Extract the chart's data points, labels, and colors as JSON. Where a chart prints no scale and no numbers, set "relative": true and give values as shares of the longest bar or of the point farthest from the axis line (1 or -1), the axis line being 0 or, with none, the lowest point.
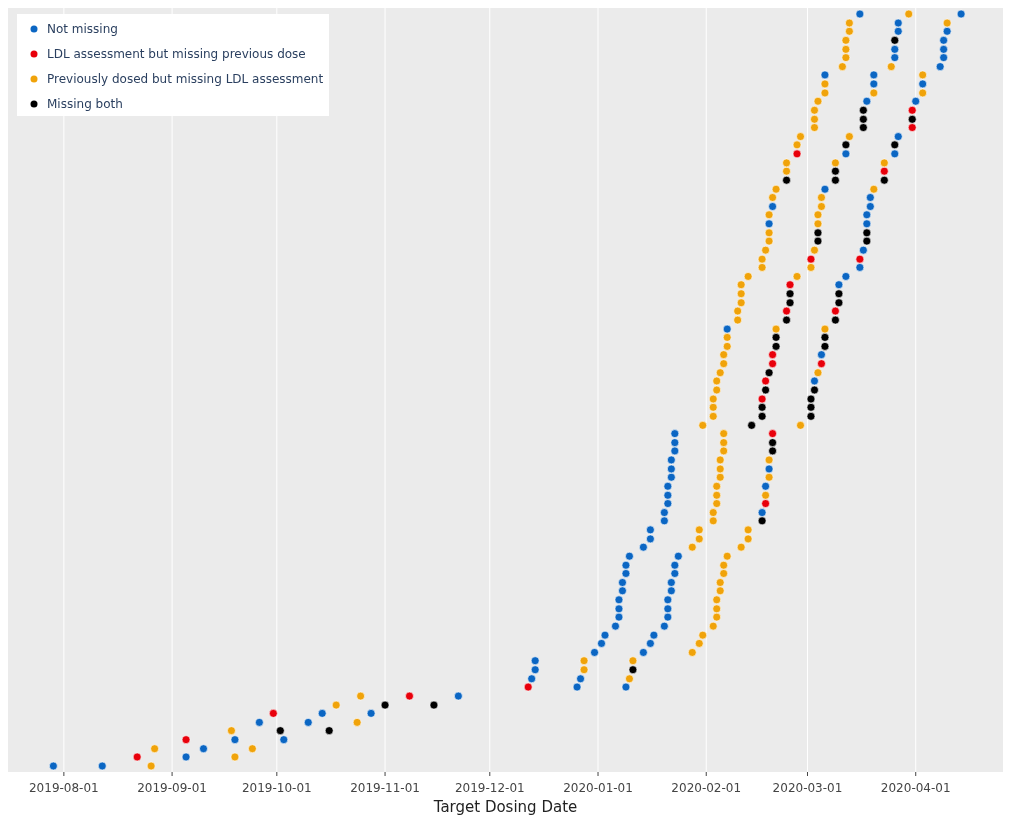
{
  "chart_data": {
    "type": "scatter",
    "xlabel": "Target Dosing Date",
    "relative": true,
    "grid": "x",
    "legend": "top left",
    "marker": "circle",
    "xlim": [
      "2019-07-16",
      "2020-04-26"
    ],
    "xticks": [
      "2019-08-01",
      "2019-09-01",
      "2019-10-01",
      "2019-11-01",
      "2019-12-01",
      "2020-01-01",
      "2020-02-01",
      "2020-03-01",
      "2020-04-01"
    ],
    "series": [
      {
        "name": "Not missing",
        "color": "#0b66c3",
        "x": [
          "2019-07-29",
          "2019-08-12",
          "2019-09-05",
          "2019-09-10",
          "2019-09-19",
          "2019-10-03",
          "2019-09-26",
          "2019-10-10",
          "2019-10-14",
          "2019-10-28",
          "2019-11-22",
          "2019-12-26",
          "2020-01-09",
          "2019-12-13",
          "2019-12-27",
          "2019-12-14",
          "2019-12-14",
          "2019-12-31",
          "2020-01-14",
          "2020-01-02",
          "2020-01-16",
          "2020-01-03",
          "2020-01-17",
          "2020-01-06",
          "2020-01-20",
          "2020-01-07",
          "2020-01-21",
          "2020-01-07",
          "2020-01-21",
          "2020-01-07",
          "2020-01-21",
          "2020-01-08",
          "2020-01-22",
          "2020-01-08",
          "2020-01-22",
          "2020-01-09",
          "2020-01-23",
          "2020-01-09",
          "2020-01-23",
          "2020-01-10",
          "2020-01-24",
          "2020-01-14",
          "2020-01-16",
          "2020-01-16",
          "2020-01-20",
          "2020-01-20",
          "2020-02-17",
          "2020-01-21",
          "2020-01-21",
          "2020-01-21",
          "2020-02-18",
          "2020-01-22",
          "2020-01-22",
          "2020-02-19",
          "2020-01-22",
          "2020-01-23",
          "2020-01-23",
          "2020-01-23",
          "2020-03-03",
          "2020-03-05",
          "2020-02-07",
          "2020-03-10",
          "2020-03-12",
          "2020-03-16",
          "2020-03-17",
          "2020-02-19",
          "2020-03-18",
          "2020-03-18",
          "2020-02-20",
          "2020-03-19",
          "2020-03-19",
          "2020-03-06",
          "2020-03-12",
          "2020-03-26",
          "2020-03-27",
          "2020-03-18",
          "2020-04-01",
          "2020-03-20",
          "2020-04-03",
          "2020-03-06",
          "2020-03-20",
          "2020-04-08",
          "2020-03-26",
          "2020-04-09",
          "2020-03-26",
          "2020-04-09",
          "2020-04-09",
          "2020-03-27",
          "2020-04-10",
          "2020-03-27",
          "2020-03-16",
          "2020-04-14"
        ],
        "values": [
          0,
          0,
          0.012,
          0.023,
          0.035,
          0.035,
          0.058,
          0.058,
          0.07,
          0.07,
          0.093,
          0.105,
          0.105,
          0.116,
          0.116,
          0.128,
          0.14,
          0.151,
          0.151,
          0.163,
          0.163,
          0.174,
          0.174,
          0.186,
          0.186,
          0.198,
          0.198,
          0.209,
          0.209,
          0.221,
          0.221,
          0.233,
          0.233,
          0.244,
          0.244,
          0.256,
          0.256,
          0.267,
          0.267,
          0.279,
          0.279,
          0.291,
          0.302,
          0.314,
          0.326,
          0.337,
          0.337,
          0.349,
          0.36,
          0.372,
          0.372,
          0.384,
          0.395,
          0.395,
          0.407,
          0.419,
          0.43,
          0.442,
          0.512,
          0.547,
          0.581,
          0.64,
          0.651,
          0.663,
          0.686,
          0.721,
          0.721,
          0.733,
          0.744,
          0.744,
          0.756,
          0.767,
          0.814,
          0.814,
          0.837,
          0.884,
          0.884,
          0.907,
          0.907,
          0.919,
          0.919,
          0.93,
          0.942,
          0.942,
          0.953,
          0.953,
          0.965,
          0.977,
          0.977,
          0.988,
          1,
          1
        ]
      },
      {
        "name": "LDL assessment but missing previous dose",
        "color": "#e8000b",
        "x": [
          "2019-08-22",
          "2019-09-05",
          "2019-09-30",
          "2019-11-08",
          "2019-12-12",
          "2020-02-18",
          "2020-02-20",
          "2020-02-17",
          "2020-02-18",
          "2020-02-20",
          "2020-03-05",
          "2020-02-20",
          "2020-02-24",
          "2020-03-09",
          "2020-02-25",
          "2020-03-02",
          "2020-03-16",
          "2020-03-23",
          "2020-02-27",
          "2020-03-31",
          "2020-03-31"
        ],
        "values": [
          0.012,
          0.035,
          0.07,
          0.093,
          0.105,
          0.349,
          0.442,
          0.488,
          0.512,
          0.535,
          0.535,
          0.547,
          0.605,
          0.605,
          0.64,
          0.674,
          0.674,
          0.791,
          0.814,
          0.849,
          0.872
        ]
      },
      {
        "name": "Previously dosed but missing LDL assessment",
        "color": "#f0a30a",
        "x": [
          "2019-08-26",
          "2019-09-19",
          "2019-08-27",
          "2019-09-24",
          "2019-09-18",
          "2019-10-24",
          "2019-10-18",
          "2019-10-25",
          "2020-01-10",
          "2019-12-28",
          "2019-12-28",
          "2020-01-11",
          "2020-01-28",
          "2020-01-30",
          "2020-01-31",
          "2020-02-03",
          "2020-02-04",
          "2020-02-04",
          "2020-02-04",
          "2020-02-05",
          "2020-02-05",
          "2020-02-06",
          "2020-02-06",
          "2020-02-07",
          "2020-01-28",
          "2020-02-11",
          "2020-01-30",
          "2020-02-13",
          "2020-01-30",
          "2020-02-13",
          "2020-02-03",
          "2020-02-03",
          "2020-02-04",
          "2020-02-04",
          "2020-02-18",
          "2020-02-04",
          "2020-02-05",
          "2020-02-19",
          "2020-02-05",
          "2020-02-05",
          "2020-02-19",
          "2020-02-06",
          "2020-02-06",
          "2020-02-06",
          "2020-01-31",
          "2020-02-28",
          "2020-02-03",
          "2020-02-03",
          "2020-02-03",
          "2020-02-04",
          "2020-02-04",
          "2020-02-05",
          "2020-03-04",
          "2020-02-06",
          "2020-02-06",
          "2020-02-07",
          "2020-02-07",
          "2020-02-21",
          "2020-03-06",
          "2020-02-10",
          "2020-02-10",
          "2020-02-11",
          "2020-02-11",
          "2020-02-11",
          "2020-02-13",
          "2020-02-27",
          "2020-02-17",
          "2020-03-02",
          "2020-02-17",
          "2020-02-18",
          "2020-03-03",
          "2020-02-19",
          "2020-02-19",
          "2020-03-04",
          "2020-02-19",
          "2020-03-04",
          "2020-03-05",
          "2020-02-20",
          "2020-03-05",
          "2020-02-21",
          "2020-03-20",
          "2020-02-24",
          "2020-02-24",
          "2020-03-09",
          "2020-03-23",
          "2020-02-27",
          "2020-02-28",
          "2020-03-13",
          "2020-03-03",
          "2020-03-03",
          "2020-03-03",
          "2020-03-04",
          "2020-03-06",
          "2020-03-20",
          "2020-04-03",
          "2020-03-06",
          "2020-04-03",
          "2020-03-11",
          "2020-03-25",
          "2020-03-12",
          "2020-03-12",
          "2020-03-12",
          "2020-03-13",
          "2020-03-13",
          "2020-04-10",
          "2020-03-30"
        ],
        "values": [
          0,
          0.012,
          0.023,
          0.023,
          0.047,
          0.058,
          0.081,
          0.093,
          0.116,
          0.128,
          0.14,
          0.14,
          0.151,
          0.163,
          0.174,
          0.186,
          0.198,
          0.209,
          0.221,
          0.233,
          0.244,
          0.256,
          0.267,
          0.279,
          0.291,
          0.291,
          0.302,
          0.302,
          0.314,
          0.314,
          0.326,
          0.337,
          0.349,
          0.36,
          0.36,
          0.372,
          0.384,
          0.384,
          0.395,
          0.407,
          0.407,
          0.419,
          0.43,
          0.442,
          0.453,
          0.453,
          0.465,
          0.477,
          0.488,
          0.5,
          0.512,
          0.523,
          0.523,
          0.535,
          0.547,
          0.558,
          0.57,
          0.581,
          0.581,
          0.593,
          0.605,
          0.616,
          0.628,
          0.64,
          0.651,
          0.651,
          0.663,
          0.663,
          0.674,
          0.686,
          0.686,
          0.698,
          0.709,
          0.721,
          0.733,
          0.733,
          0.744,
          0.756,
          0.756,
          0.767,
          0.767,
          0.791,
          0.802,
          0.802,
          0.802,
          0.826,
          0.837,
          0.837,
          0.849,
          0.86,
          0.872,
          0.884,
          0.895,
          0.895,
          0.895,
          0.907,
          0.919,
          0.93,
          0.93,
          0.942,
          0.953,
          0.965,
          0.977,
          0.988,
          0.988,
          1
        ]
      },
      {
        "name": "Missing both",
        "color": "#000000",
        "x": [
          "2019-10-02",
          "2019-10-16",
          "2019-11-01",
          "2019-11-15",
          "2020-01-11",
          "2020-02-17",
          "2020-02-20",
          "2020-02-20",
          "2020-02-14",
          "2020-02-17",
          "2020-03-02",
          "2020-02-17",
          "2020-03-02",
          "2020-03-02",
          "2020-02-18",
          "2020-03-03",
          "2020-02-19",
          "2020-02-21",
          "2020-03-06",
          "2020-02-21",
          "2020-03-06",
          "2020-02-24",
          "2020-03-09",
          "2020-02-25",
          "2020-03-10",
          "2020-02-25",
          "2020-03-10",
          "2020-03-04",
          "2020-03-18",
          "2020-03-04",
          "2020-03-18",
          "2020-02-24",
          "2020-03-09",
          "2020-03-23",
          "2020-03-09",
          "2020-03-12",
          "2020-03-26",
          "2020-03-17",
          "2020-03-17",
          "2020-03-31",
          "2020-03-17",
          "2020-03-26"
        ],
        "values": [
          0.047,
          0.047,
          0.081,
          0.081,
          0.128,
          0.326,
          0.419,
          0.43,
          0.453,
          0.465,
          0.465,
          0.477,
          0.477,
          0.488,
          0.5,
          0.5,
          0.523,
          0.558,
          0.558,
          0.57,
          0.57,
          0.593,
          0.593,
          0.616,
          0.616,
          0.628,
          0.628,
          0.698,
          0.698,
          0.709,
          0.709,
          0.779,
          0.779,
          0.779,
          0.791,
          0.826,
          0.826,
          0.849,
          0.86,
          0.86,
          0.872,
          0.965
        ]
      }
    ]
  }
}
